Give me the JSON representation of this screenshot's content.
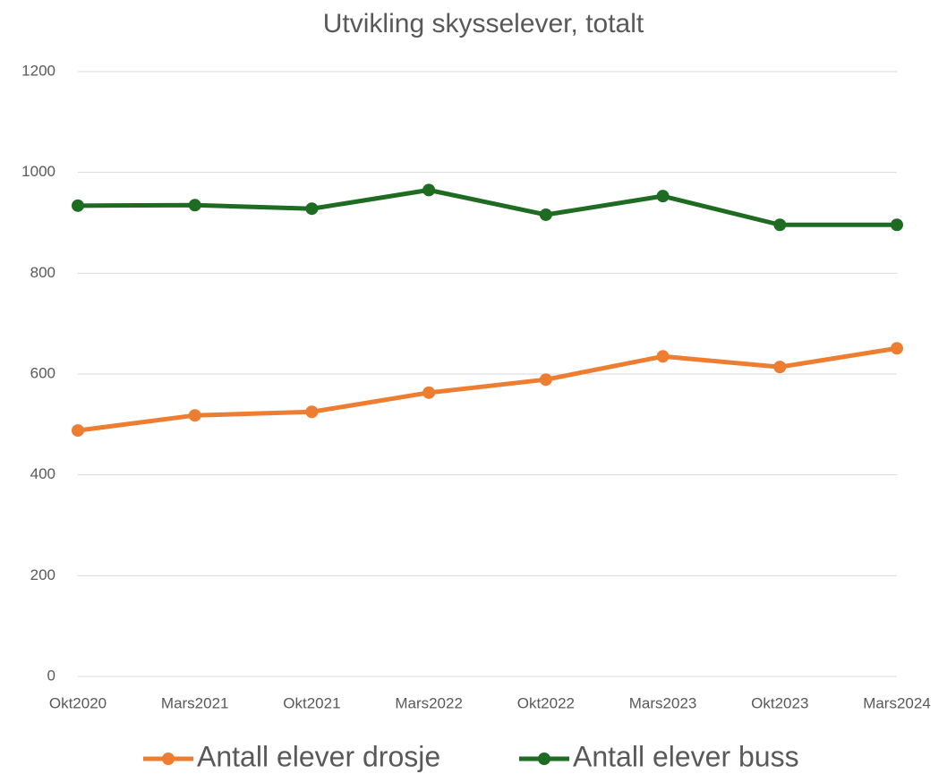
{
  "chart_data": {
    "type": "line",
    "title": "Utvikling skysselever, totalt",
    "categories": [
      "Okt2020",
      "Mars2021",
      "Okt2021",
      "Mars2022",
      "Okt2022",
      "Mars2023",
      "Okt2023",
      "Mars2024"
    ],
    "series": [
      {
        "name": "Antall elever drosje",
        "color": "#ed7d31",
        "values": [
          488,
          518,
          525,
          563,
          589,
          635,
          614,
          651
        ]
      },
      {
        "name": "Antall elever buss",
        "color": "#1e6b22",
        "values": [
          934,
          935,
          928,
          965,
          916,
          953,
          896,
          896
        ]
      }
    ],
    "ylim": [
      0,
      1200
    ],
    "yticks": [
      0,
      200,
      400,
      600,
      800,
      1000,
      1200
    ],
    "grid": true,
    "legend": "bottom"
  }
}
